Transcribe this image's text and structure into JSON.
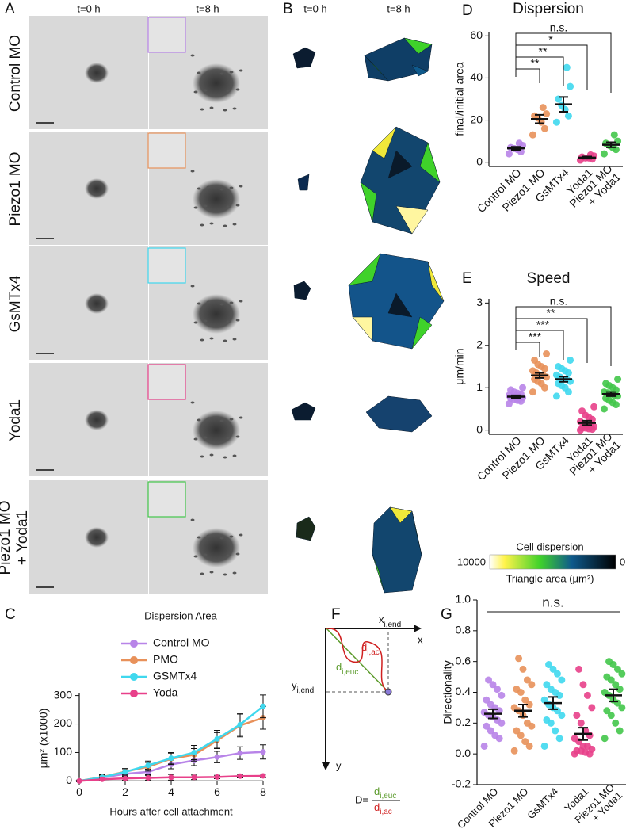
{
  "panel_labels": [
    "A",
    "B",
    "C",
    "D",
    "E",
    "F",
    "G"
  ],
  "panel_a": {
    "columns": [
      "t=0 h",
      "t=8 h"
    ],
    "rows": [
      "Control MO",
      "Piezo1 MO",
      "GsMTx4",
      "Yoda1",
      [
        "Piezo1 MO",
        "+ Yoda1"
      ]
    ],
    "inset_colors": [
      "#b884e8",
      "#e8915a",
      "#3fd8ee",
      "#e8408a",
      "#43c64a"
    ]
  },
  "panel_b": {
    "columns": [
      "t=0 h",
      "t=8 h"
    ],
    "colorbar": {
      "title": "Cell dispersion",
      "label": "Triangle area (μm²)",
      "ticks": [
        10000,
        0
      ]
    }
  },
  "panel_f": {
    "x_end": {
      "base": "x",
      "sub": "i,end"
    },
    "x": "x",
    "y_end": {
      "base": "y",
      "sub": "i,end"
    },
    "y": "y",
    "d_ac": {
      "base": "d",
      "sub": "i,ac"
    },
    "d_euc": {
      "base": "d",
      "sub": "i,euc"
    },
    "formula": "D="
  },
  "chart_data": [
    {
      "type": "line",
      "title": "Dispersion Area",
      "x_label": "Hours after cell attachment",
      "y_label": "μm² (x1000)",
      "x": [
        0,
        1,
        2,
        3,
        4,
        5,
        6,
        7,
        8
      ],
      "xlim": [
        0,
        8
      ],
      "xticks": [
        0,
        2,
        4,
        6,
        8
      ],
      "ylim": [
        -10,
        310
      ],
      "yticks": [
        0,
        100,
        200,
        300
      ],
      "series": [
        {
          "name": "Control MO",
          "color": "#b884e8",
          "values": [
            0,
            12,
            25,
            32,
            58,
            72,
            84,
            98,
            102
          ],
          "errors": [
            2,
            6,
            8,
            10,
            15,
            18,
            20,
            22,
            25
          ]
        },
        {
          "name": "PMO",
          "color": "#e8915a",
          "values": [
            0,
            14,
            33,
            50,
            78,
            92,
            142,
            195,
            222
          ],
          "errors": [
            3,
            8,
            10,
            15,
            20,
            22,
            28,
            40,
            40
          ]
        },
        {
          "name": "GSMTx4",
          "color": "#3fd8ee",
          "values": [
            0,
            13,
            32,
            55,
            80,
            100,
            148,
            198,
            262
          ],
          "errors": [
            3,
            8,
            12,
            15,
            20,
            25,
            30,
            38,
            40
          ]
        },
        {
          "name": "Yoda",
          "color": "#e8408a",
          "values": [
            0,
            6,
            9,
            11,
            13,
            13,
            14,
            17,
            18
          ],
          "errors": [
            1,
            4,
            6,
            8,
            10,
            8,
            6,
            6,
            6
          ]
        }
      ]
    },
    {
      "type": "dot",
      "title": "Dispersion",
      "y_label": "final/initial area",
      "categories": [
        "Control MO",
        "Piezo1 MO",
        "GsMTx4",
        "Yoda1",
        [
          "Piezo1 MO",
          "+ Yoda1"
        ]
      ],
      "ylim": [
        -2,
        62
      ],
      "yticks": [
        0,
        20,
        40,
        60
      ],
      "groups": [
        {
          "color": "#b884e8",
          "points": [
            4,
            5,
            6,
            6.5,
            7,
            8,
            9
          ],
          "mean": 6.6,
          "sem": 0.7
        },
        {
          "color": "#e8915a",
          "points": [
            13,
            16,
            19,
            21,
            22,
            23,
            26
          ],
          "mean": 20.5,
          "sem": 2
        },
        {
          "color": "#3fd8ee",
          "points": [
            19,
            22,
            25,
            27,
            30,
            36,
            45
          ],
          "mean": 27.5,
          "sem": 3.5
        },
        {
          "color": "#e8408a",
          "points": [
            1,
            1.5,
            2,
            2,
            2.5,
            3,
            3.5
          ],
          "mean": 2.2,
          "sem": 0.5
        },
        {
          "color": "#43c64a",
          "points": [
            4,
            6,
            7,
            8,
            9,
            10,
            13
          ],
          "mean": 8.3,
          "sem": 1.2
        }
      ],
      "comparisons": [
        "n.s.",
        "*",
        "**",
        "**"
      ]
    },
    {
      "type": "dot",
      "title": "Speed",
      "y_label": "μm/min",
      "categories": [
        "Control MO",
        "Piezo1 MO",
        "GsMTx4",
        "Yoda1",
        [
          "Piezo1 MO",
          "+ Yoda1"
        ]
      ],
      "ylim": [
        -0.1,
        3.1
      ],
      "yticks": [
        0,
        1,
        2,
        3
      ],
      "groups": [
        {
          "color": "#b884e8",
          "points": [
            0.62,
            0.68,
            0.7,
            0.72,
            0.75,
            0.76,
            0.78,
            0.8,
            0.8,
            0.82,
            0.85,
            0.87,
            0.9,
            0.95,
            1.0
          ],
          "mean": 0.79,
          "sem": 0.03
        },
        {
          "color": "#e8915a",
          "points": [
            0.9,
            1.0,
            1.1,
            1.15,
            1.2,
            1.25,
            1.3,
            1.3,
            1.35,
            1.4,
            1.45,
            1.5,
            1.55,
            1.65,
            1.8
          ],
          "mean": 1.29,
          "sem": 0.06
        },
        {
          "color": "#3fd8ee",
          "points": [
            0.8,
            0.9,
            1.0,
            1.05,
            1.1,
            1.15,
            1.2,
            1.2,
            1.25,
            1.3,
            1.35,
            1.4,
            1.45,
            1.5,
            1.65
          ],
          "mean": 1.2,
          "sem": 0.06
        },
        {
          "color": "#e8408a",
          "points": [
            0.0,
            0.02,
            0.03,
            0.05,
            0.05,
            0.08,
            0.1,
            0.12,
            0.15,
            0.2,
            0.25,
            0.3,
            0.35,
            0.45,
            0.55
          ],
          "mean": 0.17,
          "sem": 0.05
        },
        {
          "color": "#43c64a",
          "points": [
            0.5,
            0.6,
            0.65,
            0.7,
            0.75,
            0.8,
            0.82,
            0.85,
            0.88,
            0.9,
            0.95,
            1.0,
            1.05,
            1.1,
            1.2
          ],
          "mean": 0.85,
          "sem": 0.05
        }
      ],
      "comparisons": [
        "n.s.",
        "**",
        "***",
        "***"
      ]
    },
    {
      "type": "dot",
      "y_label": "Directionality",
      "categories": [
        "Control MO",
        "Piezo1 MO",
        "GsMTx4",
        "Yoda1",
        [
          "Piezo1 MO",
          "+ Yoda1"
        ]
      ],
      "ylim": [
        -0.2,
        1.0
      ],
      "yticks": [
        -0.2,
        {
          "value": 0,
          "label": "0.0"
        },
        0.2,
        0.4,
        0.6,
        0.8,
        {
          "value": 1,
          "label": "1.0"
        }
      ],
      "groups": [
        {
          "color": "#b884e8",
          "points": [
            0.05,
            0.1,
            0.12,
            0.15,
            0.18,
            0.2,
            0.22,
            0.24,
            0.25,
            0.27,
            0.28,
            0.3,
            0.32,
            0.35,
            0.38,
            0.42,
            0.45,
            0.48
          ],
          "mean": 0.26,
          "sem": 0.03
        },
        {
          "color": "#e8915a",
          "points": [
            0.02,
            0.05,
            0.08,
            0.12,
            0.15,
            0.18,
            0.2,
            0.25,
            0.28,
            0.3,
            0.32,
            0.35,
            0.4,
            0.42,
            0.45,
            0.48,
            0.55,
            0.62
          ],
          "mean": 0.28,
          "sem": 0.04
        },
        {
          "color": "#3fd8ee",
          "points": [
            0.05,
            0.1,
            0.15,
            0.2,
            0.22,
            0.25,
            0.28,
            0.3,
            0.32,
            0.35,
            0.38,
            0.4,
            0.42,
            0.45,
            0.48,
            0.52,
            0.55,
            0.58
          ],
          "mean": 0.33,
          "sem": 0.04
        },
        {
          "color": "#e8408a",
          "points": [
            0.0,
            0.0,
            0.01,
            0.02,
            0.02,
            0.03,
            0.05,
            0.05,
            0.08,
            0.1,
            0.12,
            0.15,
            0.2,
            0.25,
            0.3,
            0.38,
            0.45,
            0.55
          ],
          "mean": 0.13,
          "sem": 0.04
        },
        {
          "color": "#43c64a",
          "points": [
            0.1,
            0.15,
            0.2,
            0.25,
            0.28,
            0.3,
            0.33,
            0.35,
            0.38,
            0.4,
            0.42,
            0.45,
            0.48,
            0.5,
            0.52,
            0.55,
            0.58,
            0.6
          ],
          "mean": 0.38,
          "sem": 0.04
        }
      ],
      "overall_label": "n.s."
    }
  ]
}
